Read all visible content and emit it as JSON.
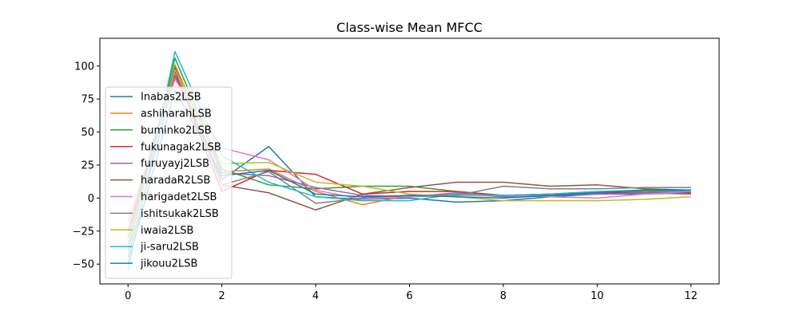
{
  "chart_data": {
    "type": "line",
    "title": "Class-wise Mean MFCC",
    "xlabel": "",
    "ylabel": "",
    "xlim": [
      -0.6,
      12.6
    ],
    "ylim": [
      -65,
      121
    ],
    "x": [
      0,
      1,
      2,
      3,
      4,
      5,
      6,
      7,
      8,
      9,
      10,
      11,
      12
    ],
    "x_ticks": [
      0,
      2,
      4,
      6,
      8,
      10,
      12
    ],
    "y_ticks": [
      -50,
      -25,
      0,
      25,
      50,
      75,
      100
    ],
    "grid": false,
    "legend_position": "lower-left",
    "series": [
      {
        "name": "Inabas2LSB",
        "color": "#1f77b4",
        "values": [
          -45,
          93,
          14,
          39,
          1,
          -1,
          0,
          -3,
          -2,
          1,
          3,
          3,
          4
        ]
      },
      {
        "name": "ashiharahLSB",
        "color": "#ff7f0e",
        "values": [
          -35,
          101,
          20,
          22,
          5,
          -5,
          2,
          3,
          1,
          2,
          3,
          4,
          3
        ]
      },
      {
        "name": "buminko2LSB",
        "color": "#2ca02c",
        "values": [
          -40,
          106,
          22,
          10,
          7,
          9,
          9,
          5,
          2,
          3,
          5,
          5,
          5
        ]
      },
      {
        "name": "fukunagak2LSB",
        "color": "#d62728",
        "values": [
          -30,
          96,
          5,
          21,
          18,
          3,
          5,
          5,
          2,
          3,
          4,
          4,
          4
        ]
      },
      {
        "name": "furuyayj2LSB",
        "color": "#9467bd",
        "values": [
          -25,
          92,
          19,
          17,
          8,
          2,
          1,
          4,
          1,
          2,
          3,
          4,
          3
        ]
      },
      {
        "name": "haradaR2LSB",
        "color": "#8c564b",
        "values": [
          -25,
          99,
          10,
          4,
          -9,
          3,
          8,
          12,
          12,
          9,
          10,
          7,
          6
        ]
      },
      {
        "name": "harigadet2LSB",
        "color": "#e377c2",
        "values": [
          -18,
          90,
          38,
          29,
          6,
          -1,
          1,
          2,
          2,
          1,
          0,
          3,
          5
        ]
      },
      {
        "name": "ishitsukak2LSB",
        "color": "#7f7f7f",
        "values": [
          -30,
          100,
          10,
          20,
          -4,
          0,
          2,
          2,
          9,
          7,
          7,
          8,
          8
        ]
      },
      {
        "name": "iwaia2LSB",
        "color": "#bcbd22",
        "values": [
          -35,
          97,
          26,
          27,
          12,
          9,
          3,
          1,
          -2,
          -2,
          -2,
          -1,
          1
        ]
      },
      {
        "name": "ji-saru2LSB",
        "color": "#17becf",
        "values": [
          -55,
          111,
          32,
          12,
          1,
          -2,
          -2,
          3,
          2,
          3,
          5,
          6,
          5
        ]
      },
      {
        "name": "jikouu2LSB",
        "color": "#1f77b4",
        "values": [
          -50,
          82,
          17,
          21,
          3,
          1,
          2,
          1,
          0,
          2,
          4,
          6,
          6
        ]
      }
    ]
  }
}
